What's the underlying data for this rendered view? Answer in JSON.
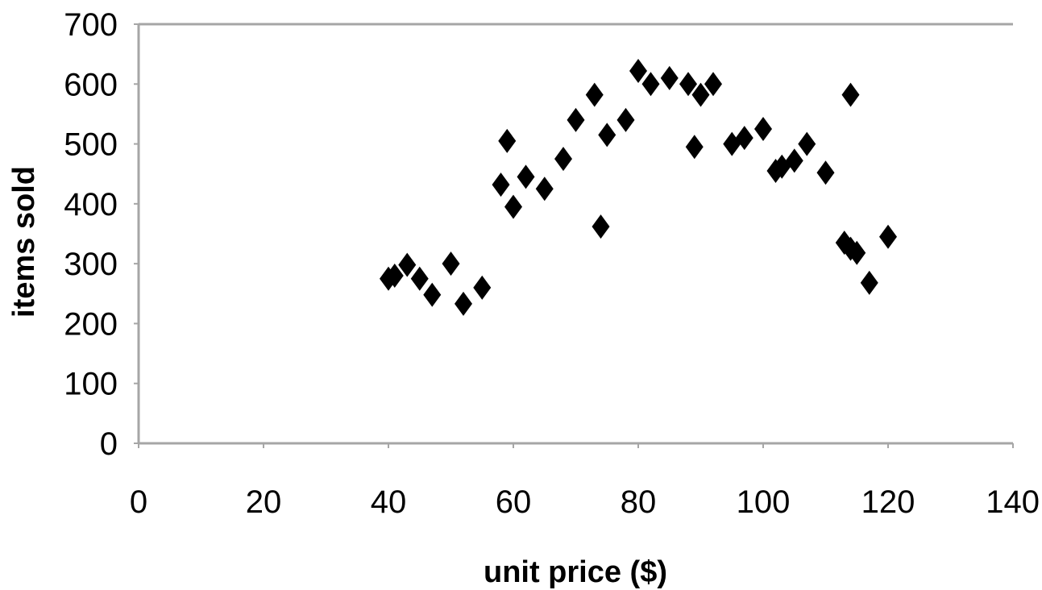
{
  "chart_data": {
    "type": "scatter",
    "title": "",
    "xlabel": "unit price ($)",
    "ylabel": "items sold",
    "xlim": [
      0,
      140
    ],
    "ylim": [
      0,
      700
    ],
    "x_ticks": [
      "0",
      "20",
      "40",
      "60",
      "80",
      "100",
      "120",
      "140"
    ],
    "y_ticks": [
      "0",
      "100",
      "200",
      "300",
      "400",
      "500",
      "600",
      "700"
    ],
    "grid": false,
    "legend": "none",
    "marker": "diamond",
    "marker_color": "#000000",
    "axis_color": "#a6a6a6",
    "series": [
      {
        "points": [
          {
            "x": 40,
            "y": 275
          },
          {
            "x": 41,
            "y": 280
          },
          {
            "x": 43,
            "y": 298
          },
          {
            "x": 45,
            "y": 275
          },
          {
            "x": 47,
            "y": 248
          },
          {
            "x": 50,
            "y": 300
          },
          {
            "x": 52,
            "y": 233
          },
          {
            "x": 55,
            "y": 260
          },
          {
            "x": 58,
            "y": 432
          },
          {
            "x": 59,
            "y": 505
          },
          {
            "x": 60,
            "y": 395
          },
          {
            "x": 62,
            "y": 445
          },
          {
            "x": 65,
            "y": 425
          },
          {
            "x": 68,
            "y": 475
          },
          {
            "x": 70,
            "y": 540
          },
          {
            "x": 73,
            "y": 582
          },
          {
            "x": 74,
            "y": 362
          },
          {
            "x": 75,
            "y": 515
          },
          {
            "x": 78,
            "y": 540
          },
          {
            "x": 80,
            "y": 622
          },
          {
            "x": 82,
            "y": 600
          },
          {
            "x": 85,
            "y": 610
          },
          {
            "x": 88,
            "y": 600
          },
          {
            "x": 89,
            "y": 495
          },
          {
            "x": 90,
            "y": 582
          },
          {
            "x": 92,
            "y": 600
          },
          {
            "x": 95,
            "y": 500
          },
          {
            "x": 97,
            "y": 510
          },
          {
            "x": 100,
            "y": 525
          },
          {
            "x": 102,
            "y": 455
          },
          {
            "x": 103,
            "y": 462
          },
          {
            "x": 105,
            "y": 472
          },
          {
            "x": 107,
            "y": 500
          },
          {
            "x": 110,
            "y": 452
          },
          {
            "x": 113,
            "y": 335
          },
          {
            "x": 114,
            "y": 325
          },
          {
            "x": 114,
            "y": 582
          },
          {
            "x": 115,
            "y": 318
          },
          {
            "x": 117,
            "y": 268
          },
          {
            "x": 120,
            "y": 345
          }
        ]
      }
    ]
  }
}
